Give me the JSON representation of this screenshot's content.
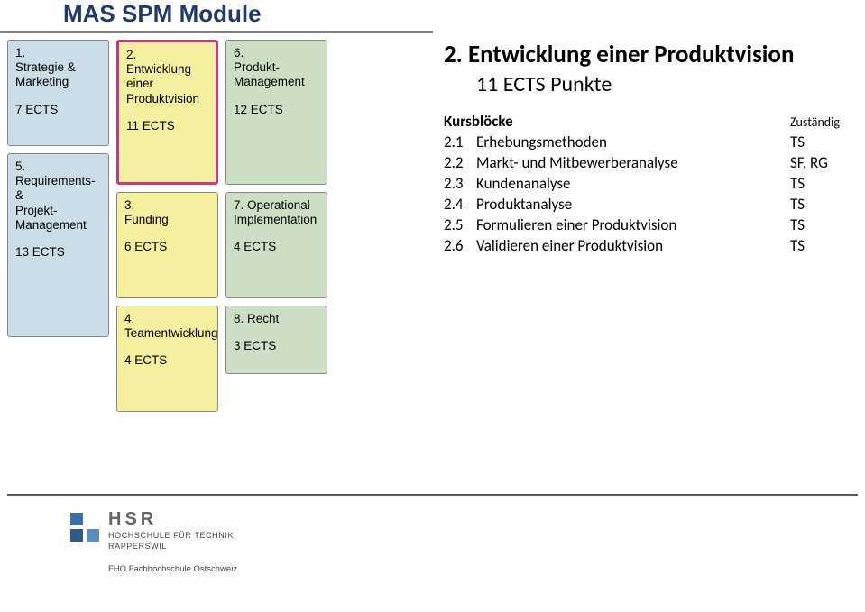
{
  "header": {
    "title": "MAS SPM Module"
  },
  "modules": {
    "strategie": {
      "num": "1.",
      "title": "Strategie &\nMarketing",
      "ects": "7 ECTS"
    },
    "prodvision": {
      "num": "2.",
      "title": "Entwicklung einer\nProduktvision",
      "ects": "11 ECTS"
    },
    "prodmgmt": {
      "num": "6.",
      "title": "Produkt-\nManagement",
      "ects": "12 ECTS"
    },
    "requirements": {
      "num": "5.",
      "title": "Requirements- &\nProjekt-\nManagement",
      "ects": "13 ECTS"
    },
    "funding": {
      "num": "3.",
      "title": "Funding",
      "ects": "6 ECTS"
    },
    "opimpl": {
      "num": "7. Operational",
      "title": "Implementation",
      "ects": "4 ECTS"
    },
    "recht": {
      "num": "8. Recht",
      "title": "",
      "ects": "3 ECTS"
    },
    "teamentw": {
      "num": "4.",
      "title": "Teamentwicklung",
      "ects": "4 ECTS"
    }
  },
  "right": {
    "title": "2.  Entwicklung einer Produktvision",
    "subtitle": "11 ECTS Punkte",
    "table_header": {
      "label": "Kursblöcke",
      "resp": "Zuständig"
    },
    "rows": [
      {
        "num": "2.1",
        "label": "Erhebungsmethoden",
        "resp": "TS"
      },
      {
        "num": "2.2",
        "label": "Markt- und Mitbewerberanalyse",
        "resp": "SF, RG"
      },
      {
        "num": "2.3",
        "label": "Kundenanalyse",
        "resp": "TS"
      },
      {
        "num": "2.4",
        "label": "Produktanalyse",
        "resp": "TS"
      },
      {
        "num": "2.5",
        "label": "Formulieren einer Produktvision",
        "resp": "TS"
      },
      {
        "num": "2.6",
        "label": "Validieren einer Produktvision",
        "resp": "TS"
      }
    ]
  },
  "footer": {
    "hsr": "HSR",
    "line1": "HOCHSCHULE FÜR TECHNIK",
    "line2": "RAPPERSWIL",
    "fho": "FHO Fachhochschule Ostschweiz"
  },
  "colors": {
    "header_text": "#1f3a6b",
    "highlight_border": "#c63b85",
    "blue_card": "#cbdde6",
    "yellow_card": "#f5f0a0",
    "green_card": "#ccdfc4"
  }
}
